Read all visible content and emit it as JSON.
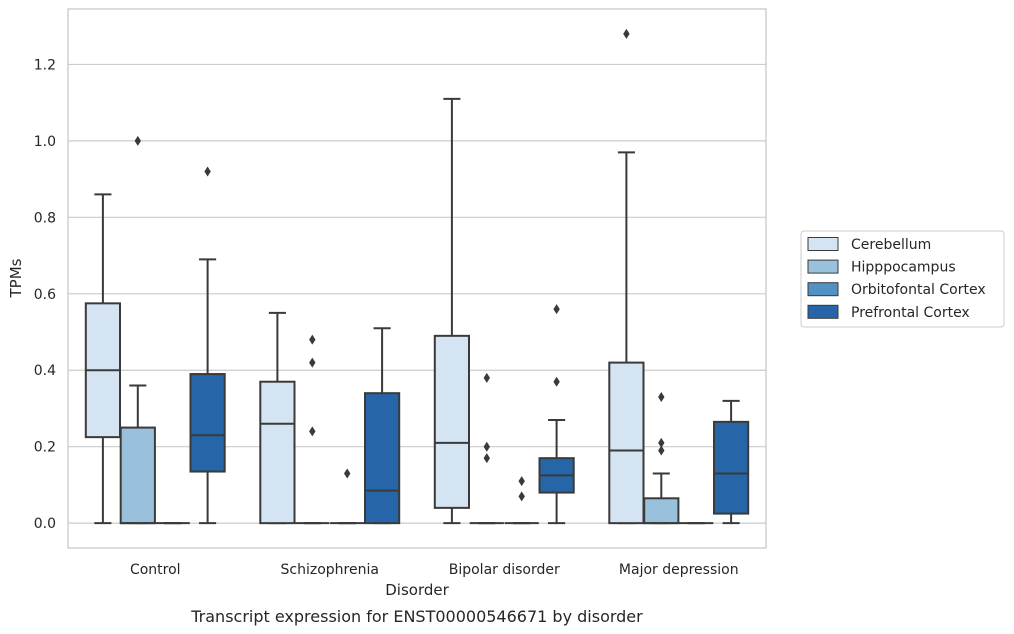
{
  "chart_data": {
    "type": "box",
    "title": "",
    "caption": "Transcript expression for ENST00000546671 by disorder",
    "xlabel": "Disorder",
    "ylabel": "TPMs",
    "ylim": [
      -0.065,
      1.345
    ],
    "yticks": [
      "0.0",
      "0.2",
      "0.4",
      "0.6",
      "0.8",
      "1.0",
      "1.2"
    ],
    "grid": "horizontal",
    "legend_position": "right",
    "categories": [
      "Control",
      "Schizophrenia",
      "Bipolar disorder",
      "Major depression"
    ],
    "series": [
      {
        "name": "Cerebellum",
        "color": "#d4e4f2",
        "boxes": [
          {
            "whislo": 0.0,
            "q1": 0.225,
            "med": 0.4,
            "q3": 0.575,
            "whishi": 0.86,
            "fliers": []
          },
          {
            "whislo": 0.0,
            "q1": 0.0,
            "med": 0.26,
            "q3": 0.37,
            "whishi": 0.55,
            "fliers": []
          },
          {
            "whislo": 0.0,
            "q1": 0.04,
            "med": 0.21,
            "q3": 0.49,
            "whishi": 1.11,
            "fliers": []
          },
          {
            "whislo": 0.0,
            "q1": 0.0,
            "med": 0.19,
            "q3": 0.42,
            "whishi": 0.97,
            "fliers": [
              1.28
            ]
          }
        ]
      },
      {
        "name": "Hipppocampus",
        "color": "#9ac1dc",
        "boxes": [
          {
            "whislo": 0.0,
            "q1": 0.0,
            "med": 0.0,
            "q3": 0.25,
            "whishi": 0.36,
            "fliers": [
              1.0
            ]
          },
          {
            "whislo": 0.0,
            "q1": 0.0,
            "med": 0.0,
            "q3": 0.0,
            "whishi": 0.0,
            "fliers": [
              0.48,
              0.42,
              0.24
            ]
          },
          {
            "whislo": 0.0,
            "q1": 0.0,
            "med": 0.0,
            "q3": 0.0,
            "whishi": 0.0,
            "fliers": [
              0.38,
              0.2,
              0.17
            ]
          },
          {
            "whislo": 0.0,
            "q1": 0.0,
            "med": 0.0,
            "q3": 0.065,
            "whishi": 0.13,
            "fliers": [
              0.33,
              0.21,
              0.19
            ]
          }
        ]
      },
      {
        "name": "Orbitofontal Cortex",
        "color": "#5191c4",
        "boxes": [
          {
            "whislo": 0.0,
            "q1": 0.0,
            "med": 0.0,
            "q3": 0.0,
            "whishi": 0.0,
            "fliers": []
          },
          {
            "whislo": 0.0,
            "q1": 0.0,
            "med": 0.0,
            "q3": 0.0,
            "whishi": 0.0,
            "fliers": [
              0.13
            ]
          },
          {
            "whislo": 0.0,
            "q1": 0.0,
            "med": 0.0,
            "q3": 0.0,
            "whishi": 0.0,
            "fliers": [
              0.11,
              0.07
            ]
          },
          {
            "whislo": 0.0,
            "q1": 0.0,
            "med": 0.0,
            "q3": 0.0,
            "whishi": 0.0,
            "fliers": []
          }
        ]
      },
      {
        "name": "Prefrontal Cortex",
        "color": "#2666a8",
        "boxes": [
          {
            "whislo": 0.0,
            "q1": 0.135,
            "med": 0.23,
            "q3": 0.39,
            "whishi": 0.69,
            "fliers": [
              0.92
            ]
          },
          {
            "whislo": 0.0,
            "q1": 0.0,
            "med": 0.085,
            "q3": 0.34,
            "whishi": 0.51,
            "fliers": []
          },
          {
            "whislo": 0.0,
            "q1": 0.08,
            "med": 0.125,
            "q3": 0.17,
            "whishi": 0.27,
            "fliers": [
              0.56,
              0.37
            ]
          },
          {
            "whislo": 0.0,
            "q1": 0.025,
            "med": 0.13,
            "q3": 0.265,
            "whishi": 0.32,
            "fliers": []
          }
        ]
      }
    ]
  }
}
